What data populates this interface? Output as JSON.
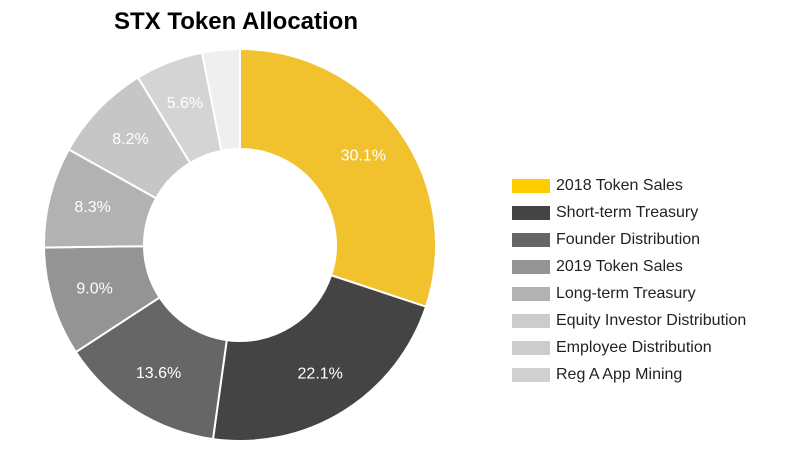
{
  "chart_data": {
    "type": "pie",
    "title": "STX Token Allocation",
    "donut": true,
    "legend_position": "right",
    "slices": [
      {
        "name": "2018 Token Sales",
        "value": 30.1,
        "label": "30.1%",
        "color": "#F2C12E",
        "label_color": "#ffffff"
      },
      {
        "name": "Short-term Treasury",
        "value": 22.1,
        "label": "22.1%",
        "color": "#444444",
        "label_color": "#ffffff"
      },
      {
        "name": "Founder Distribution",
        "value": 13.6,
        "label": "13.6%",
        "color": "#666666",
        "label_color": "#ffffff"
      },
      {
        "name": "2019 Token Sales",
        "value": 9.0,
        "label": "9.0%",
        "color": "#949494",
        "label_color": "#ffffff"
      },
      {
        "name": "Long-term Treasury",
        "value": 8.3,
        "label": "8.3%",
        "color": "#B2B2B2",
        "label_color": "#ffffff"
      },
      {
        "name": "Equity Investor Distribution",
        "value": 8.2,
        "label": "8.2%",
        "color": "#C6C6C6",
        "label_color": "#ffffff"
      },
      {
        "name": "Employee Distribution",
        "value": 5.6,
        "label": "5.6%",
        "color": "#D4D4D4",
        "label_color": "#ffffff"
      },
      {
        "name": "Reg A App Mining",
        "value": 3.1,
        "label": "",
        "color": "#EFEFEF",
        "label_color": "#ffffff"
      }
    ],
    "legend_colors": [
      "#FFCC00",
      "#444444",
      "#666666",
      "#949494",
      "#B2B2B2",
      "#CCCCCC",
      "#CCCCCC",
      "#D0D0D0"
    ]
  }
}
